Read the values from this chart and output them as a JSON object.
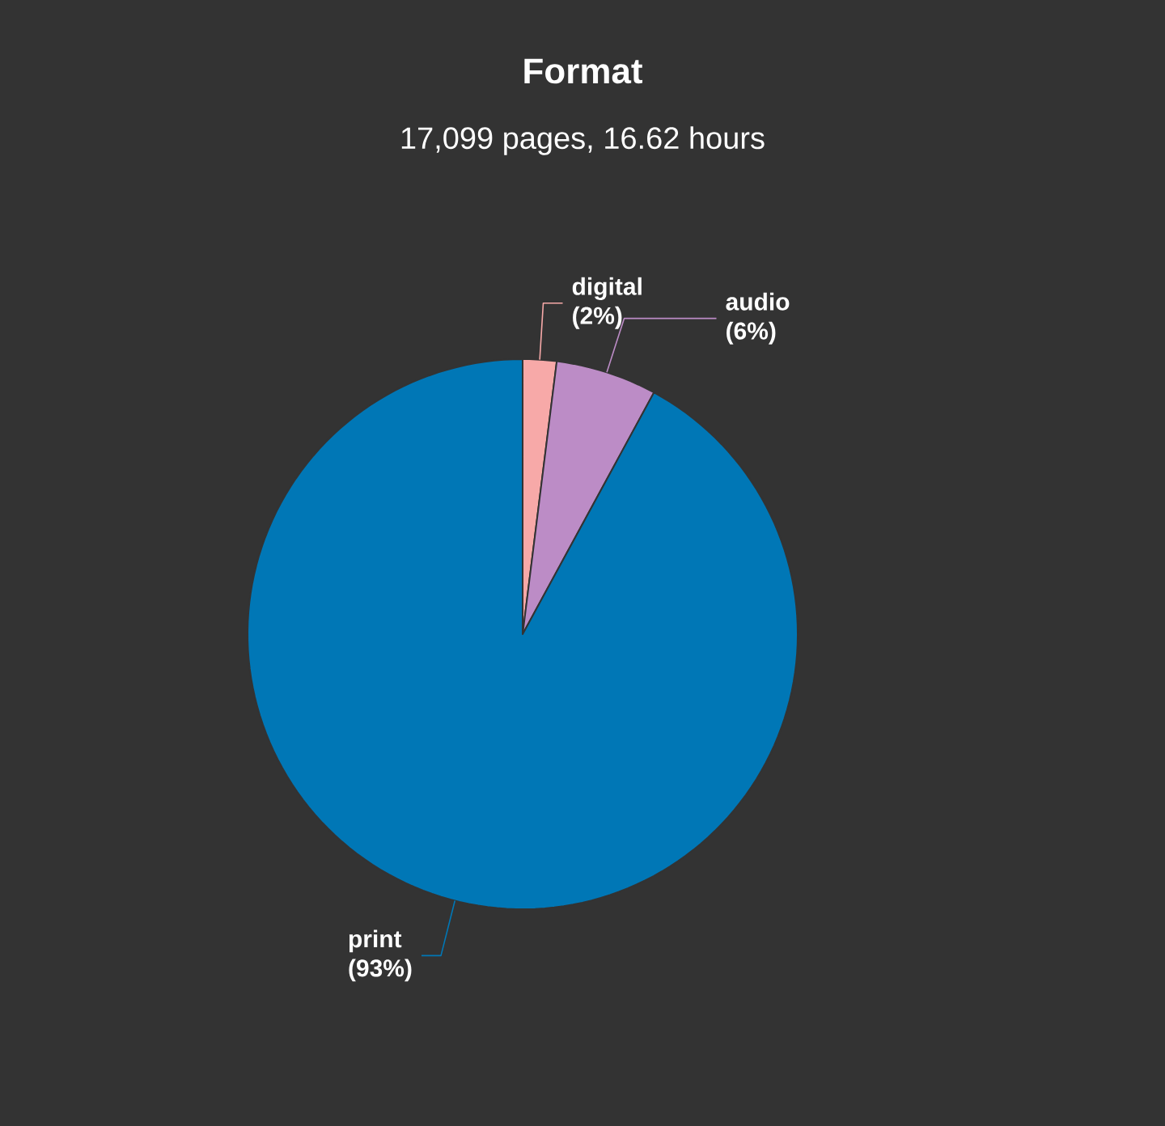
{
  "chart_data": {
    "type": "pie",
    "title": "Format",
    "subtitle": "17,099 pages, 16.62 hours",
    "categories": [
      "digital",
      "audio",
      "print"
    ],
    "values": [
      2,
      6,
      93
    ],
    "value_labels": [
      "(2%)",
      "(6%)",
      "(93%)"
    ],
    "colors": [
      "#f7a9a8",
      "#bc8cc6",
      "#0077b6"
    ]
  }
}
